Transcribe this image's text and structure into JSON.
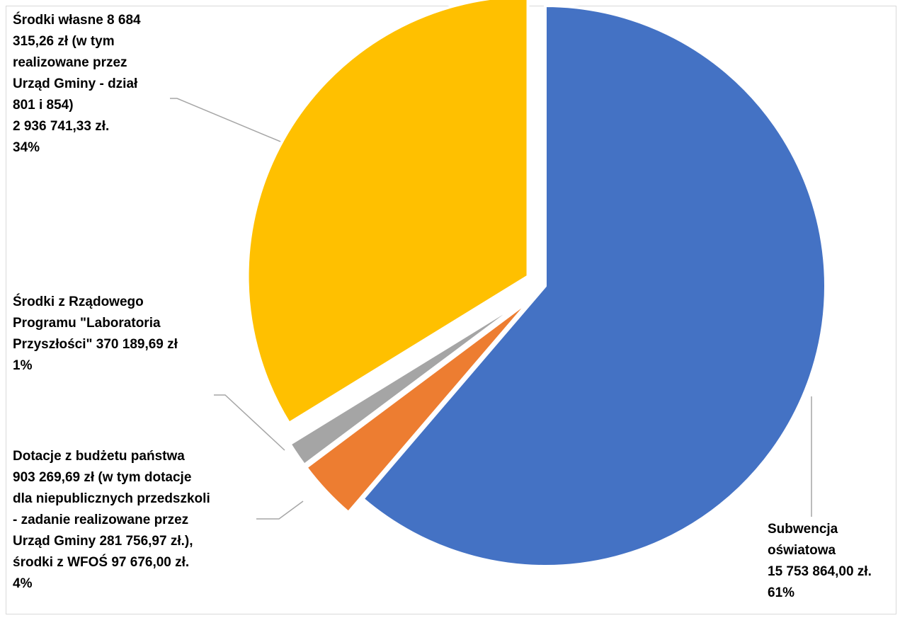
{
  "chart_data": {
    "type": "pie",
    "title": "",
    "start_angle_deg": 0,
    "direction": "clockwise",
    "legend": "none",
    "slices": [
      {
        "name": "Subwencja oświatowa",
        "value": 15753864.0,
        "percent": 61,
        "color": "#4472C4",
        "exploded": false,
        "label_lines": [
          "Subwencja",
          "oświatowa",
          "15 753 864,00 zł.",
          "61%"
        ]
      },
      {
        "name": "Dotacje z budżetu państwa",
        "value": 903269.69,
        "percent": 4,
        "color": "#ED7D31",
        "exploded": true,
        "label_lines": [
          "Dotacje z budżetu państwa",
          "903 269,69 zł (w tym dotacje",
          "dla niepublicznych przedszkoli",
          "- zadanie realizowane przez",
          "Urząd Gminy 281 756,97 zł.),",
          "środki z WFOŚ 97 676,00 zł.",
          "4%"
        ]
      },
      {
        "name": "Środki z Rządowego Programu \"Laboratoria Przyszłości\"",
        "value": 370189.69,
        "percent": 1,
        "color": "#A5A5A5",
        "exploded": true,
        "label_lines": [
          "Środki z Rządowego",
          "Programu \"Laboratoria",
          "Przyszłości\" 370 189,69 zł",
          "1%"
        ]
      },
      {
        "name": "Środki własne",
        "value": 8684315.26,
        "percent": 34,
        "color": "#FFC000",
        "exploded": true,
        "label_lines": [
          "Środki własne 8 684",
          "315,26 zł (w tym",
          "realizowane przez",
          "Urząd Gminy - dział",
          "801 i 854)",
          "2 936 741,33 zł.",
          "34%"
        ]
      }
    ]
  }
}
